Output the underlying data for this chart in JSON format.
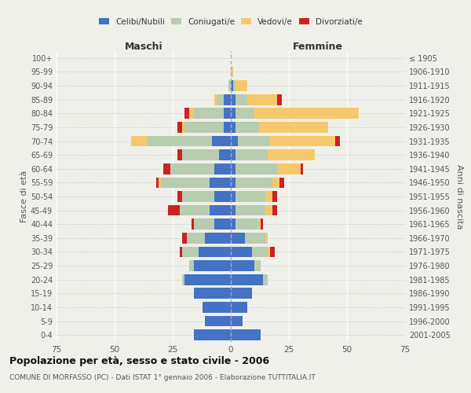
{
  "age_groups": [
    "0-4",
    "5-9",
    "10-14",
    "15-19",
    "20-24",
    "25-29",
    "30-34",
    "35-39",
    "40-44",
    "45-49",
    "50-54",
    "55-59",
    "60-64",
    "65-69",
    "70-74",
    "75-79",
    "80-84",
    "85-89",
    "90-94",
    "95-99",
    "100+"
  ],
  "birth_years": [
    "2001-2005",
    "1996-2000",
    "1991-1995",
    "1986-1990",
    "1981-1985",
    "1976-1980",
    "1971-1975",
    "1966-1970",
    "1961-1965",
    "1956-1960",
    "1951-1955",
    "1946-1950",
    "1941-1945",
    "1936-1940",
    "1931-1935",
    "1926-1930",
    "1921-1925",
    "1916-1920",
    "1911-1915",
    "1906-1910",
    "≤ 1905"
  ],
  "male": {
    "celibi": [
      16,
      11,
      12,
      16,
      20,
      16,
      14,
      11,
      7,
      9,
      7,
      9,
      7,
      5,
      8,
      3,
      3,
      3,
      0,
      0,
      0
    ],
    "coniugati": [
      0,
      0,
      0,
      0,
      1,
      2,
      7,
      8,
      9,
      13,
      14,
      21,
      19,
      16,
      28,
      17,
      13,
      3,
      1,
      0,
      0
    ],
    "vedovi": [
      0,
      0,
      0,
      0,
      0,
      0,
      0,
      0,
      0,
      0,
      0,
      1,
      0,
      0,
      7,
      1,
      2,
      1,
      0,
      0,
      0
    ],
    "divorziati": [
      0,
      0,
      0,
      0,
      0,
      0,
      1,
      2,
      1,
      5,
      2,
      1,
      3,
      2,
      0,
      2,
      2,
      0,
      0,
      0,
      0
    ]
  },
  "female": {
    "nubili": [
      13,
      5,
      7,
      9,
      14,
      10,
      9,
      6,
      2,
      2,
      2,
      2,
      2,
      2,
      3,
      2,
      2,
      2,
      1,
      0,
      0
    ],
    "coniugate": [
      0,
      0,
      0,
      0,
      2,
      3,
      7,
      9,
      10,
      13,
      13,
      16,
      18,
      14,
      14,
      10,
      8,
      5,
      1,
      0,
      0
    ],
    "vedove": [
      0,
      0,
      0,
      0,
      0,
      0,
      1,
      1,
      1,
      3,
      3,
      3,
      10,
      20,
      28,
      30,
      45,
      13,
      5,
      1,
      0
    ],
    "divorziate": [
      0,
      0,
      0,
      0,
      0,
      0,
      2,
      0,
      1,
      2,
      2,
      2,
      1,
      0,
      2,
      0,
      0,
      2,
      0,
      0,
      0
    ]
  },
  "colors": {
    "celibi_nubili": "#4472C4",
    "coniugati": "#B8CCB0",
    "vedovi": "#F5C96B",
    "divorziati": "#CC2222"
  },
  "xlim": 75,
  "title": "Popolazione per età, sesso e stato civile - 2006",
  "subtitle": "COMUNE DI MORFASSO (PC) - Dati ISTAT 1° gennaio 2006 - Elaborazione TUTTITALIA.IT",
  "ylabel_left": "Fasce di età",
  "ylabel_right": "Anni di nascita",
  "xlabel_left": "Maschi",
  "xlabel_right": "Femmine",
  "background_color": "#f0f0eb"
}
